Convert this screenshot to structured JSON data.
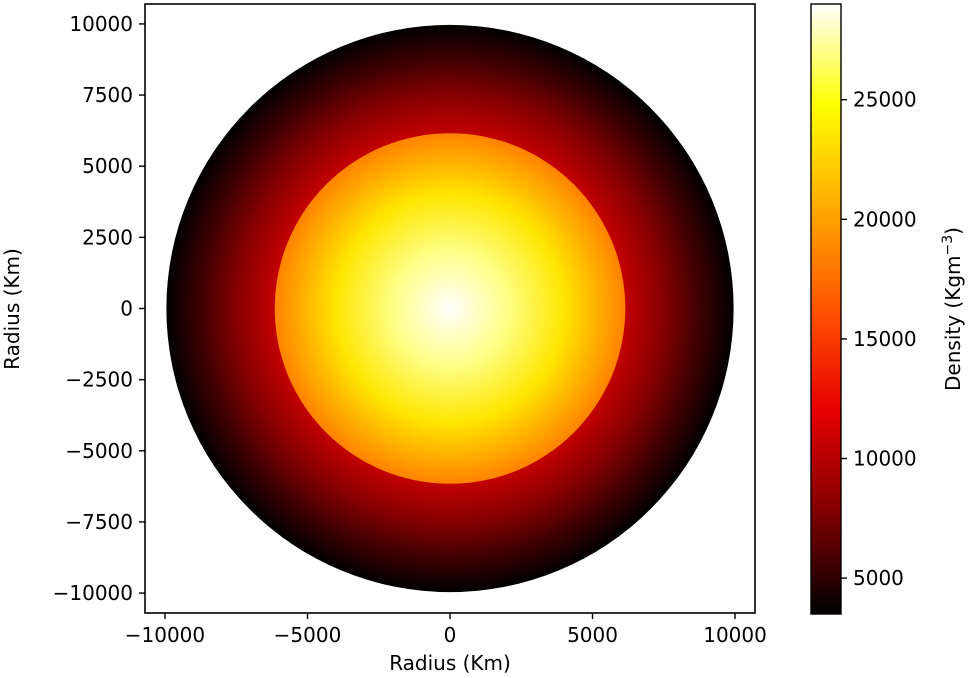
{
  "chart_data": {
    "type": "heatmap",
    "xlabel": "Radius (Km)",
    "ylabel": "Radius (Km)",
    "xlim": [
      -10700,
      10700
    ],
    "ylim": [
      -10700,
      10700
    ],
    "x_ticks": [
      -10000,
      -5000,
      0,
      5000,
      10000
    ],
    "x_tick_labels": [
      "−10000",
      "−5000",
      "0",
      "5000",
      "10000"
    ],
    "y_ticks": [
      10000,
      7500,
      5000,
      2500,
      0,
      -2500,
      -5000,
      -7500,
      -10000
    ],
    "y_tick_labels": [
      "10000",
      "7500",
      "5000",
      "2500",
      "0",
      "−2500",
      "−5000",
      "−7500",
      "−10000"
    ],
    "grid": false,
    "colorbar": {
      "label": "Density (Kgm",
      "label_superscript": "−3",
      "label_suffix": ")",
      "range": [
        3500,
        29000
      ],
      "ticks": [
        5000,
        10000,
        15000,
        20000,
        25000
      ],
      "tick_labels": [
        "5000",
        "10000",
        "15000",
        "20000",
        "25000"
      ],
      "colormap": [
        "#000000",
        "#800000",
        "#e60000",
        "#ff5500",
        "#ffaa00",
        "#ffff00",
        "#ffffff"
      ]
    },
    "profile": {
      "outer_radius": 9950,
      "core_radius": 6150,
      "points": [
        {
          "r": 0,
          "density": 29000
        },
        {
          "r": 2000,
          "density": 27000
        },
        {
          "r": 4000,
          "density": 23500
        },
        {
          "r": 6150,
          "density": 18500
        },
        {
          "r": 6150,
          "density": 10500
        },
        {
          "r": 7500,
          "density": 8000
        },
        {
          "r": 8800,
          "density": 5500
        },
        {
          "r": 9500,
          "density": 4300
        },
        {
          "r": 9950,
          "density": 3500
        }
      ]
    }
  }
}
